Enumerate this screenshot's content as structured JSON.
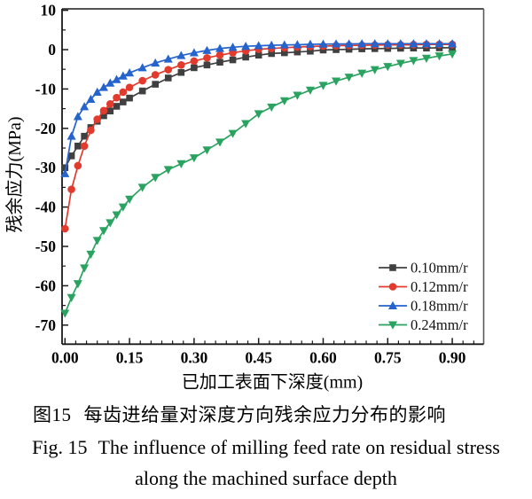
{
  "page_background": "#ffffff",
  "colors": {
    "axis": "#1a1a1a",
    "frame_right": "#5a5a5a",
    "tick_label": "#000000",
    "legend_text": "#111111"
  },
  "chart_data": {
    "type": "line",
    "title": "",
    "xlabel": "已加工表面下深度(mm)",
    "ylabel": "残余应力(MPa)",
    "xlim": [
      -0.007,
      0.972
    ],
    "ylim": [
      -74.7,
      10
    ],
    "grid": false,
    "legend_position": "inside lower right",
    "xaxis": {
      "tick_values": [
        0,
        0.15,
        0.3,
        0.45,
        0.6,
        0.75,
        0.9
      ],
      "tick_labels": [
        "0.00",
        "0.15",
        "0.30",
        "0.45",
        "0.60",
        "0.75",
        "0.90"
      ],
      "minor_step": 0.025,
      "minor_max": 0.95
    },
    "yaxis": {
      "tick_values": [
        10,
        0,
        -10,
        -20,
        -30,
        -40,
        -50,
        -60,
        -70
      ],
      "tick_labels": [
        "10",
        "0",
        "-10",
        "-20",
        "-30",
        "-40",
        "-50",
        "-60",
        "-70"
      ],
      "minor_values": [
        5,
        -5,
        -15,
        -25,
        -35,
        -45,
        -55,
        -65
      ]
    },
    "x": [
      0,
      0.015,
      0.03,
      0.045,
      0.06,
      0.075,
      0.09,
      0.105,
      0.12,
      0.135,
      0.15,
      0.18,
      0.21,
      0.24,
      0.27,
      0.3,
      0.33,
      0.36,
      0.39,
      0.42,
      0.45,
      0.48,
      0.51,
      0.54,
      0.57,
      0.6,
      0.63,
      0.66,
      0.69,
      0.72,
      0.75,
      0.78,
      0.81,
      0.84,
      0.87,
      0.9
    ],
    "series": [
      {
        "name": "0.10mm/r",
        "color": "#404040",
        "marker": "square",
        "values": [
          -30,
          -27,
          -24.5,
          -22,
          -19.8,
          -18.2,
          -16.8,
          -15.6,
          -14.4,
          -13.3,
          -12.3,
          -10.5,
          -8.8,
          -7.2,
          -5.8,
          -4.6,
          -3.9,
          -3.2,
          -2.6,
          -1.9,
          -1.4,
          -1,
          -0.8,
          -0.6,
          -0.4,
          -0.1,
          0,
          0.1,
          0.2,
          0.25,
          0.3,
          0.35,
          0.4,
          0.4,
          0.45,
          0.5
        ]
      },
      {
        "name": "0.12mm/r",
        "color": "#e23b2e",
        "marker": "circle",
        "values": [
          -45.5,
          -35.5,
          -29.5,
          -24.5,
          -20.5,
          -17.7,
          -15.5,
          -13.8,
          -12.2,
          -10.8,
          -9.6,
          -7.9,
          -6.4,
          -5.1,
          -3.9,
          -2.9,
          -2.1,
          -1.4,
          -0.8,
          -0.3,
          0.1,
          0.3,
          0.5,
          0.65,
          0.8,
          0.9,
          1,
          1.05,
          1.1,
          1.15,
          1.2,
          1.2,
          1.25,
          1.3,
          1.3,
          1.3
        ]
      },
      {
        "name": "0.18mm/r",
        "color": "#2563cd",
        "marker": "triangle-up",
        "values": [
          -31.5,
          -22,
          -17,
          -14.5,
          -12.6,
          -10.8,
          -9.6,
          -8.5,
          -7.6,
          -6.7,
          -5.9,
          -4.6,
          -3.4,
          -2.4,
          -1.5,
          -0.8,
          -0.2,
          0.3,
          0.6,
          0.85,
          1,
          1.1,
          1.2,
          1.25,
          1.35,
          1.4,
          1.45,
          1.45,
          1.5,
          1.5,
          1.5,
          1.5,
          1.5,
          1.5,
          1.5,
          1.5
        ]
      },
      {
        "name": "0.24mm/r",
        "color": "#2ba360",
        "marker": "triangle-down",
        "values": [
          -67,
          -63,
          -59.5,
          -55.5,
          -52,
          -48.5,
          -46,
          -44,
          -42,
          -40,
          -38,
          -35,
          -32.5,
          -30.5,
          -29,
          -27.5,
          -25.5,
          -23.5,
          -21.3,
          -18.8,
          -16.3,
          -14.6,
          -13,
          -11.6,
          -10.3,
          -9.1,
          -8,
          -7,
          -6,
          -5.1,
          -4.3,
          -3.5,
          -2.8,
          -2.2,
          -1.6,
          -1.1
        ]
      }
    ]
  },
  "captions": {
    "zh_label": "图15",
    "zh_text": "每齿进给量对深度方向残余应力分布的影响",
    "en_label": "Fig. 15",
    "en_line1": "The influence of milling feed rate on residual stress",
    "en_line2": "along the machined surface depth"
  }
}
